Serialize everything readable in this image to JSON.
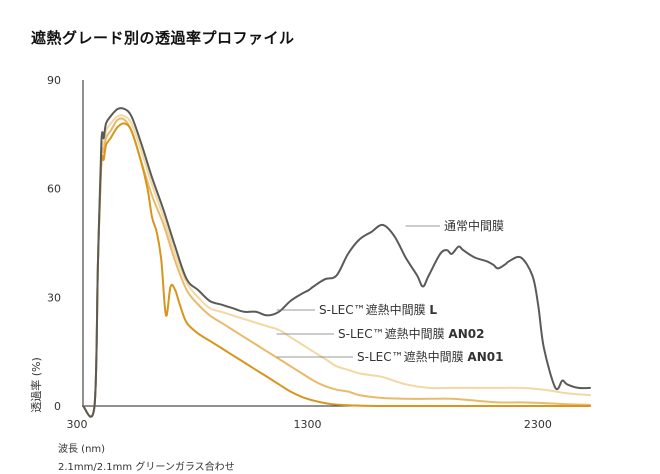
{
  "title": "遮熱グレード別の透過率プロファイル",
  "xlabel": "波長 (nm)",
  "ylabel": "透過率 (%)",
  "note": "2.1mm/2.1mm グリーンガラス合わせ",
  "chart_data": {
    "type": "line",
    "title": "遮熱グレード別の透過率プロファイル",
    "xlabel": "波長 (nm)",
    "ylabel": "透過率 (%)",
    "xlim": [
      300,
      2500
    ],
    "ylim": [
      0,
      90
    ],
    "xticks": [
      300,
      1300,
      2300
    ],
    "yticks": [
      0,
      30,
      60,
      90
    ],
    "grid": false,
    "legend": "inline-labels",
    "series": [
      {
        "name": "通常中間膜",
        "color": "#5a5a58",
        "x": [
          300,
          350,
          365,
          380,
          390,
          400,
          420,
          450,
          480,
          510,
          550,
          600,
          650,
          700,
          750,
          800,
          850,
          900,
          950,
          1000,
          1050,
          1100,
          1150,
          1200,
          1250,
          1280,
          1300,
          1350,
          1400,
          1450,
          1500,
          1550,
          1600,
          1650,
          1700,
          1750,
          1775,
          1800,
          1850,
          1880,
          1900,
          1930,
          1950,
          2000,
          2050,
          2080,
          2100,
          2130,
          2150,
          2200,
          2250,
          2275,
          2300,
          2350,
          2380,
          2400,
          2450,
          2500
        ],
        "y": [
          0,
          0,
          40,
          73,
          74,
          78,
          80,
          82,
          82,
          80,
          73,
          63,
          54,
          44,
          35,
          32,
          29,
          28,
          27,
          26,
          26,
          25,
          26,
          29,
          31,
          32,
          33,
          35,
          36,
          42,
          46,
          48,
          50,
          47,
          41,
          36,
          33,
          36,
          42,
          43,
          42,
          44,
          43,
          41,
          40,
          39,
          38,
          39,
          40,
          41,
          36,
          28,
          16,
          5,
          7,
          6,
          5,
          5
        ]
      },
      {
        "name": "S-LEC™遮熱中間膜 L",
        "color": "#f2d8a2",
        "x": [
          300,
          350,
          365,
          380,
          390,
          400,
          420,
          450,
          480,
          510,
          550,
          600,
          650,
          700,
          750,
          800,
          850,
          900,
          950,
          1000,
          1050,
          1100,
          1150,
          1200,
          1250,
          1300,
          1350,
          1400,
          1450,
          1500,
          1550,
          1600,
          1700,
          1800,
          1900,
          2000,
          2100,
          2200,
          2300,
          2400,
          2500
        ],
        "y": [
          0,
          0,
          40,
          70,
          72,
          76,
          78,
          80,
          80,
          78,
          71,
          61,
          52,
          42,
          34,
          30,
          27,
          26,
          25,
          24,
          23,
          22,
          21,
          19,
          17,
          15,
          13,
          11,
          10,
          9,
          8.5,
          8,
          6,
          5,
          5,
          5,
          5,
          5,
          4.5,
          3.5,
          3
        ]
      },
      {
        "name": "S-LEC™遮熱中間膜 AN02",
        "color": "#e8ba6a",
        "x": [
          300,
          350,
          365,
          380,
          390,
          400,
          420,
          450,
          480,
          510,
          550,
          600,
          650,
          700,
          750,
          800,
          850,
          900,
          950,
          1000,
          1050,
          1100,
          1150,
          1200,
          1250,
          1300,
          1350,
          1400,
          1450,
          1500,
          1600,
          1700,
          1800,
          1900,
          2000,
          2100,
          2200,
          2300,
          2400,
          2500
        ],
        "y": [
          0,
          0,
          40,
          69,
          70,
          74,
          76,
          79,
          79,
          76,
          68,
          58,
          50,
          40,
          32,
          28,
          25,
          23,
          21,
          19,
          17,
          15,
          13,
          11,
          9,
          7,
          5.5,
          4.5,
          4,
          3,
          2.2,
          2,
          2,
          2,
          1.5,
          1,
          1,
          0.8,
          0.5,
          0.3
        ]
      },
      {
        "name": "S-LEC™遮熱中間膜 AN01",
        "color": "#d8951e",
        "x": [
          300,
          350,
          365,
          380,
          390,
          400,
          420,
          450,
          480,
          510,
          550,
          580,
          600,
          620,
          640,
          660,
          680,
          700,
          720,
          750,
          800,
          850,
          900,
          950,
          1000,
          1050,
          1100,
          1150,
          1200,
          1250,
          1300,
          1350,
          1400,
          1450,
          1500,
          1600,
          1700,
          1800,
          1900,
          2000,
          2100,
          2200,
          2300,
          2400,
          2500
        ],
        "y": [
          0,
          0,
          40,
          67,
          68,
          72,
          74,
          77,
          78,
          76,
          68,
          60,
          52,
          48,
          40,
          25,
          33,
          32,
          28,
          23,
          20,
          18,
          16,
          14,
          12,
          10,
          8,
          6,
          4,
          2.5,
          1.5,
          0.8,
          0.4,
          0.2,
          0.1,
          0,
          0,
          0,
          0,
          0,
          0,
          0,
          0,
          0,
          0
        ]
      }
    ],
    "annotations": [
      {
        "text": "通常中間膜",
        "series": 0,
        "at_x": 1700
      },
      {
        "text": "S-LEC™遮熱中間膜 L",
        "series": 1,
        "at_x": 1140
      },
      {
        "text": "S-LEC™遮熱中間膜 AN02",
        "series": 2,
        "at_x": 1140
      },
      {
        "text": "S-LEC™遮熱中間膜 AN01",
        "series": 3,
        "at_x": 1140
      }
    ]
  }
}
